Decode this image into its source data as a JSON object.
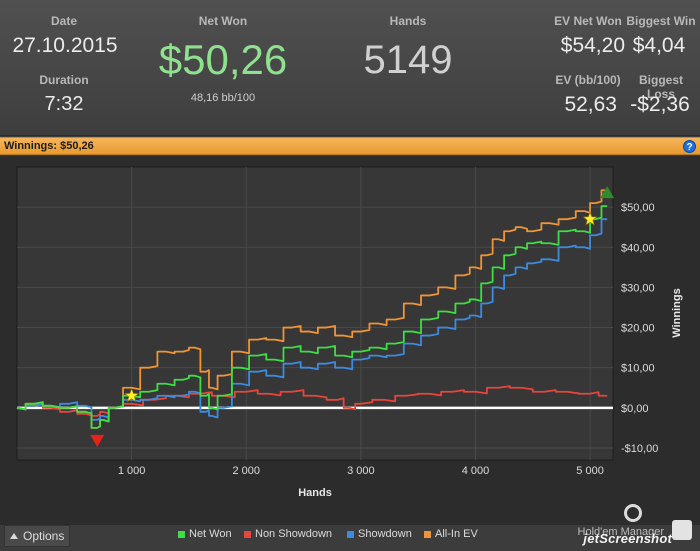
{
  "stats": {
    "date_label": "Date",
    "date_value": "27.10.2015",
    "duration_label": "Duration",
    "duration_value": "7:32",
    "net_won_label": "Net Won",
    "net_won_value": "$50,26",
    "net_won_sub": "48,16 bb/100",
    "hands_label": "Hands",
    "hands_value": "5149",
    "ev_net_won_label": "EV Net Won",
    "ev_net_won_value": "$54,20",
    "biggest_win_label": "Biggest Win",
    "biggest_win_value": "$4,04",
    "ev_bb_label": "EV (bb/100)",
    "ev_bb_value": "52,63",
    "biggest_loss_label": "Biggest Loss",
    "biggest_loss_value": "-$2,36"
  },
  "panel": {
    "title": "Winnings:",
    "amount": "$50,26",
    "help": "?"
  },
  "chart_data": {
    "type": "line",
    "xlabel": "Hands",
    "ylabel": "Winnings",
    "xlim": [
      0,
      5200
    ],
    "ylim": [
      -13,
      60
    ],
    "x_ticks": [
      1000,
      2000,
      3000,
      4000,
      5000
    ],
    "x_tick_labels": [
      "1 000",
      "2 000",
      "3 000",
      "4 000",
      "5 000"
    ],
    "y_ticks": [
      -10,
      0,
      10,
      20,
      30,
      40,
      50
    ],
    "y_tick_labels": [
      "-$10,00",
      "$0,00",
      "$10,00",
      "$20,00",
      "$30,00",
      "$40,00",
      "$50,00"
    ],
    "grid": true,
    "legend_position": "bottom",
    "series": [
      {
        "name": "Net Won",
        "color": "#3ede45",
        "x": [
          0,
          150,
          300,
          450,
          600,
          700,
          750,
          850,
          1000,
          1150,
          1300,
          1450,
          1550,
          1650,
          1700,
          1800,
          1950,
          2100,
          2250,
          2400,
          2550,
          2700,
          2850,
          3000,
          3150,
          3300,
          3450,
          3600,
          3750,
          3900,
          4000,
          4100,
          4200,
          4300,
          4400,
          4500,
          4650,
          4800,
          4950,
          5050,
          5149
        ],
        "y": [
          0,
          1,
          0.5,
          0,
          -1,
          -5,
          -3,
          0,
          3,
          4,
          6,
          7,
          8,
          3,
          0,
          3,
          10,
          13,
          12,
          15,
          14,
          15,
          13,
          14,
          15,
          16,
          19,
          22,
          24,
          26,
          27,
          31,
          35,
          38,
          40,
          41,
          41,
          44,
          44,
          47,
          50.26
        ]
      },
      {
        "name": "Non Showdown",
        "color": "#e8453c",
        "x": [
          0,
          150,
          300,
          450,
          600,
          700,
          750,
          850,
          1000,
          1200,
          1400,
          1600,
          1800,
          2000,
          2200,
          2400,
          2600,
          2800,
          2900,
          3000,
          3200,
          3400,
          3600,
          3800,
          4000,
          4200,
          4400,
          4600,
          4800,
          5000,
          5149
        ],
        "y": [
          0,
          0.5,
          0,
          -1,
          -1.5,
          -2,
          -1,
          0,
          1,
          2,
          3,
          3.5,
          3,
          4,
          3.5,
          4,
          3,
          2,
          0,
          1,
          2,
          3,
          3.5,
          4,
          4,
          5,
          5,
          4,
          4,
          3.5,
          3
        ]
      },
      {
        "name": "Showdown",
        "color": "#3d8be0",
        "x": [
          0,
          150,
          300,
          450,
          600,
          700,
          750,
          850,
          1000,
          1150,
          1300,
          1450,
          1550,
          1650,
          1700,
          1800,
          1950,
          2100,
          2250,
          2400,
          2550,
          2700,
          2850,
          3000,
          3150,
          3300,
          3450,
          3600,
          3750,
          3900,
          4000,
          4100,
          4200,
          4300,
          4400,
          4500,
          4650,
          4800,
          4950,
          5050,
          5149
        ],
        "y": [
          0,
          0.5,
          0.5,
          1,
          0.5,
          -3,
          -2,
          0,
          2,
          2,
          3,
          3,
          4,
          -1,
          -2,
          0,
          6,
          9,
          8,
          11,
          10,
          11,
          10,
          12,
          13,
          13,
          16,
          18,
          20,
          22,
          23,
          26,
          30,
          33,
          35,
          36,
          37,
          40,
          40,
          43,
          47
        ]
      },
      {
        "name": "All-In EV",
        "color": "#ef9437",
        "x": [
          0,
          150,
          300,
          450,
          600,
          700,
          750,
          850,
          1000,
          1150,
          1300,
          1450,
          1550,
          1650,
          1700,
          1800,
          1950,
          2100,
          2250,
          2400,
          2550,
          2700,
          2850,
          3000,
          3150,
          3300,
          3450,
          3600,
          3750,
          3900,
          4000,
          4100,
          4200,
          4300,
          4400,
          4500,
          4650,
          4800,
          4950,
          5050,
          5149
        ],
        "y": [
          0,
          1,
          0.5,
          0,
          -1,
          -5,
          -3,
          0,
          5,
          10,
          14,
          14,
          15,
          9,
          5,
          8,
          14,
          17,
          17,
          20,
          19,
          20,
          18,
          19,
          21,
          22,
          26,
          28,
          30,
          33,
          35,
          38,
          42,
          44,
          45,
          44,
          46,
          47,
          49,
          51,
          54.2
        ]
      }
    ],
    "markers": [
      {
        "kind": "low",
        "x": 700,
        "y": -8,
        "color": "#e5231b"
      },
      {
        "kind": "star",
        "x": 1000,
        "y": 3,
        "color": "#ffee22"
      },
      {
        "kind": "star",
        "x": 5000,
        "y": 47,
        "color": "#ffee22"
      },
      {
        "kind": "high",
        "x": 5149,
        "y": 53.5,
        "color": "#2e8b2e"
      }
    ]
  },
  "options_label": "Options",
  "brand": "Hold'em Manager",
  "watermark": "jetScreenshot"
}
